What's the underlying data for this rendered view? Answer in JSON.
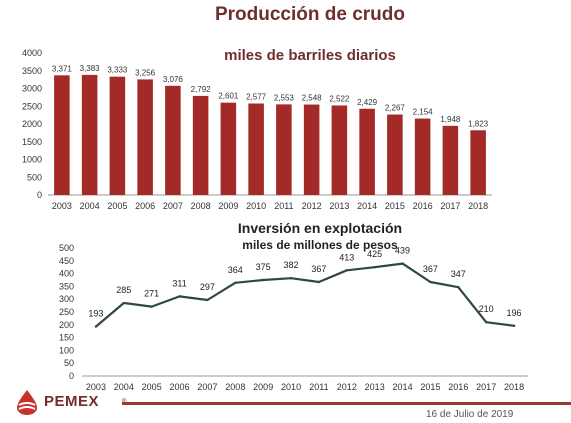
{
  "titles": {
    "top_line1": "Producción de crudo",
    "top_line2": "miles de barriles diarios",
    "bottom_line1": "Inversión en explotación",
    "bottom_line2": "miles de millones de pesos"
  },
  "footer": {
    "date": "16 de Julio de 2019",
    "logo_text": "PEMEX",
    "logo_mark": "®"
  },
  "colors": {
    "bar": "#a32a26",
    "line": "#2f4a3a",
    "title": "#6d2f30",
    "footer_rule": "#9a3a2d"
  },
  "chart_data": [
    {
      "type": "bar",
      "title": "Producción de crudo",
      "subtitle": "miles de barriles diarios",
      "categories": [
        "2003",
        "2004",
        "2005",
        "2006",
        "2007",
        "2008",
        "2009",
        "2010",
        "2011",
        "2012",
        "2013",
        "2014",
        "2015",
        "2016",
        "2017",
        "2018"
      ],
      "values": [
        3371,
        3383,
        3333,
        3256,
        3076,
        2792,
        2601,
        2577,
        2553,
        2548,
        2522,
        2429,
        2267,
        2154,
        1948,
        1823
      ],
      "value_labels": [
        "3,371",
        "3,383",
        "3,333",
        "3,256",
        "3,076",
        "2,792",
        "2,601",
        "2,577",
        "2,553",
        "2,548",
        "2,522",
        "2,429",
        "2,267",
        "2,154",
        "1,948",
        "1,823"
      ],
      "ylim": [
        0,
        4000
      ],
      "yticks": [
        "0",
        "500",
        "1000",
        "1500",
        "2000",
        "2500",
        "3000",
        "3500",
        "4000"
      ]
    },
    {
      "type": "line",
      "title": "Inversión en explotación",
      "subtitle": "miles de millones de pesos",
      "categories": [
        "2003",
        "2004",
        "2005",
        "2006",
        "2007",
        "2008",
        "2009",
        "2010",
        "2011",
        "2012",
        "2013",
        "2014",
        "2015",
        "2016",
        "2017",
        "2018"
      ],
      "values": [
        193,
        285,
        271,
        311,
        297,
        364,
        375,
        382,
        367,
        413,
        425,
        439,
        367,
        347,
        210,
        196
      ],
      "value_labels": [
        "193",
        "285",
        "271",
        "311",
        "297",
        "364",
        "375",
        "382",
        "367",
        "413",
        "425",
        "439",
        "367",
        "347",
        "210",
        "196"
      ],
      "ylim": [
        0,
        500
      ],
      "yticks": [
        "0",
        "50",
        "100",
        "150",
        "200",
        "250",
        "300",
        "350",
        "400",
        "450",
        "500"
      ]
    }
  ]
}
